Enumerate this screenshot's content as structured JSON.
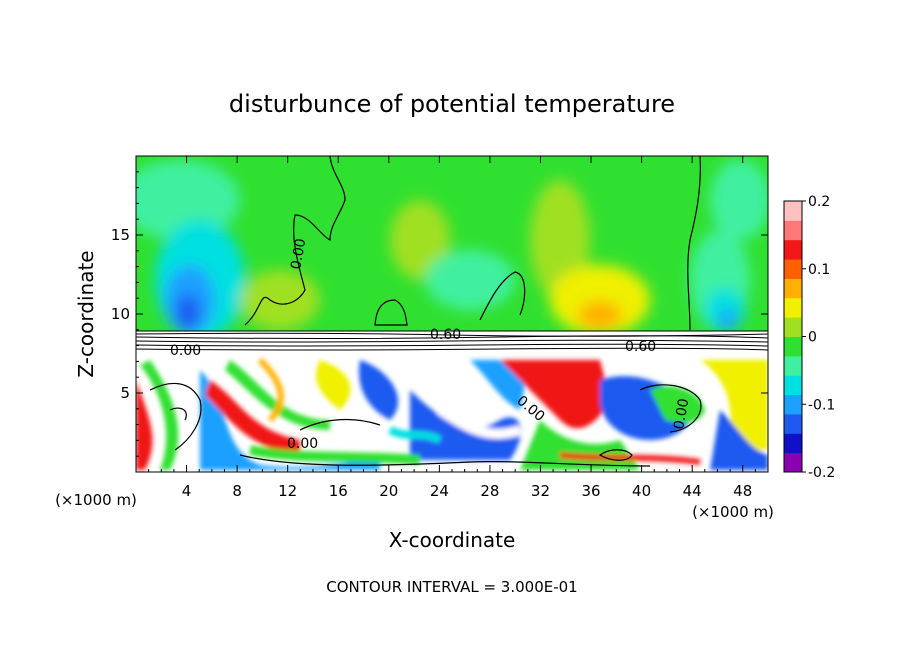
{
  "chart_data": {
    "type": "heatmap",
    "title": "disturbunce of potential temperature",
    "xlabel": "X-coordinate",
    "ylabel": "Z-coordinate",
    "x_unit_label": "(×1000 m)",
    "x_unit_label_right": "(×1000 m)",
    "xlim": [
      0,
      50
    ],
    "ylim": [
      0,
      20
    ],
    "x_ticks": [
      4,
      8,
      12,
      16,
      20,
      24,
      28,
      32,
      36,
      40,
      44,
      48
    ],
    "y_ticks": [
      5,
      10,
      15
    ],
    "colorbar": {
      "range": [
        -0.2,
        0.2
      ],
      "ticks": [
        {
          "value": 0.2,
          "label": "0.2"
        },
        {
          "value": 0.1,
          "label": "0.1"
        },
        {
          "value": 0.0,
          "label": "0"
        },
        {
          "value": -0.1,
          "label": "-0.1"
        },
        {
          "value": -0.2,
          "label": "-0.2"
        }
      ],
      "colors": [
        "#8a00b0",
        "#1010c8",
        "#1e5af0",
        "#1ea0ff",
        "#00e0e0",
        "#40f0a0",
        "#30e030",
        "#a0e020",
        "#f0f000",
        "#ffb000",
        "#ff6000",
        "#f01818",
        "#ff7878",
        "#ffc0c0"
      ]
    },
    "contour_labels": [
      "0.60",
      "0.00",
      "0.00",
      "0.00",
      "0.00",
      "0.60",
      "0.00"
    ],
    "footer": "CONTOUR INTERVAL = 3.000E-01"
  }
}
